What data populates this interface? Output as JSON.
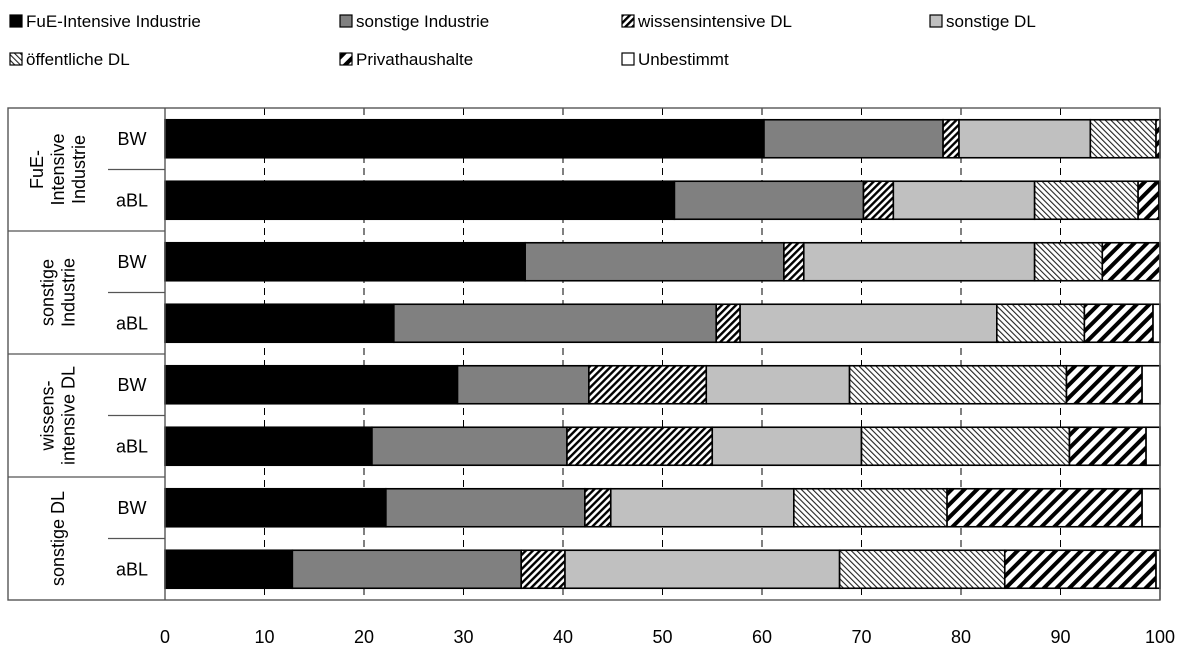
{
  "chart_data": {
    "type": "bar",
    "orientation": "horizontal",
    "stacked": true,
    "xlim": [
      0,
      100
    ],
    "xticks": [
      "0",
      "10",
      "20",
      "30",
      "40",
      "50",
      "60",
      "70",
      "80",
      "90",
      "100"
    ],
    "grid": "vertical dashed",
    "legend_position": "top",
    "groups": [
      {
        "label_lines": [
          "FuE-",
          "Intensive",
          "Industrie"
        ],
        "rows": [
          "BW",
          "aBL"
        ]
      },
      {
        "label_lines": [
          "sonstige",
          "Industrie"
        ],
        "rows": [
          "BW",
          "aBL"
        ]
      },
      {
        "label_lines": [
          "wissens-",
          "intensive DL"
        ],
        "rows": [
          "BW",
          "aBL"
        ]
      },
      {
        "label_lines": [
          "sonstige DL"
        ],
        "rows": [
          "BW",
          "aBL"
        ]
      }
    ],
    "series": [
      {
        "name": "FuE-Intensive Industrie",
        "pattern": "solid-black",
        "values": [
          60.2,
          51.2,
          36.2,
          23.0,
          29.4,
          20.8,
          22.2,
          12.8
        ]
      },
      {
        "name": "sonstige Industrie",
        "pattern": "solid-darkgray",
        "values": [
          18.0,
          19.0,
          26.0,
          32.4,
          13.2,
          19.6,
          20.0,
          23.0
        ]
      },
      {
        "name": "wissensintensive DL",
        "pattern": "dense-diagonal",
        "values": [
          1.6,
          3.0,
          2.0,
          2.4,
          11.8,
          14.6,
          2.6,
          4.4
        ]
      },
      {
        "name": "sonstige DL",
        "pattern": "solid-lightgray",
        "values": [
          13.2,
          14.2,
          23.2,
          25.8,
          14.4,
          15.0,
          18.4,
          27.6
        ]
      },
      {
        "name": "öffentliche DL",
        "pattern": "fine-diagonal",
        "values": [
          6.6,
          10.4,
          6.8,
          8.8,
          21.8,
          20.9,
          15.4,
          16.6
        ]
      },
      {
        "name": "Privathaushalte",
        "pattern": "bold-diagonal",
        "values": [
          0.4,
          2.1,
          5.8,
          6.9,
          7.6,
          7.7,
          19.6,
          15.2
        ]
      },
      {
        "name": "Unbestimmt",
        "pattern": "white",
        "values": [
          0.0,
          0.1,
          0.0,
          0.7,
          1.8,
          1.4,
          1.8,
          0.4
        ]
      }
    ]
  }
}
